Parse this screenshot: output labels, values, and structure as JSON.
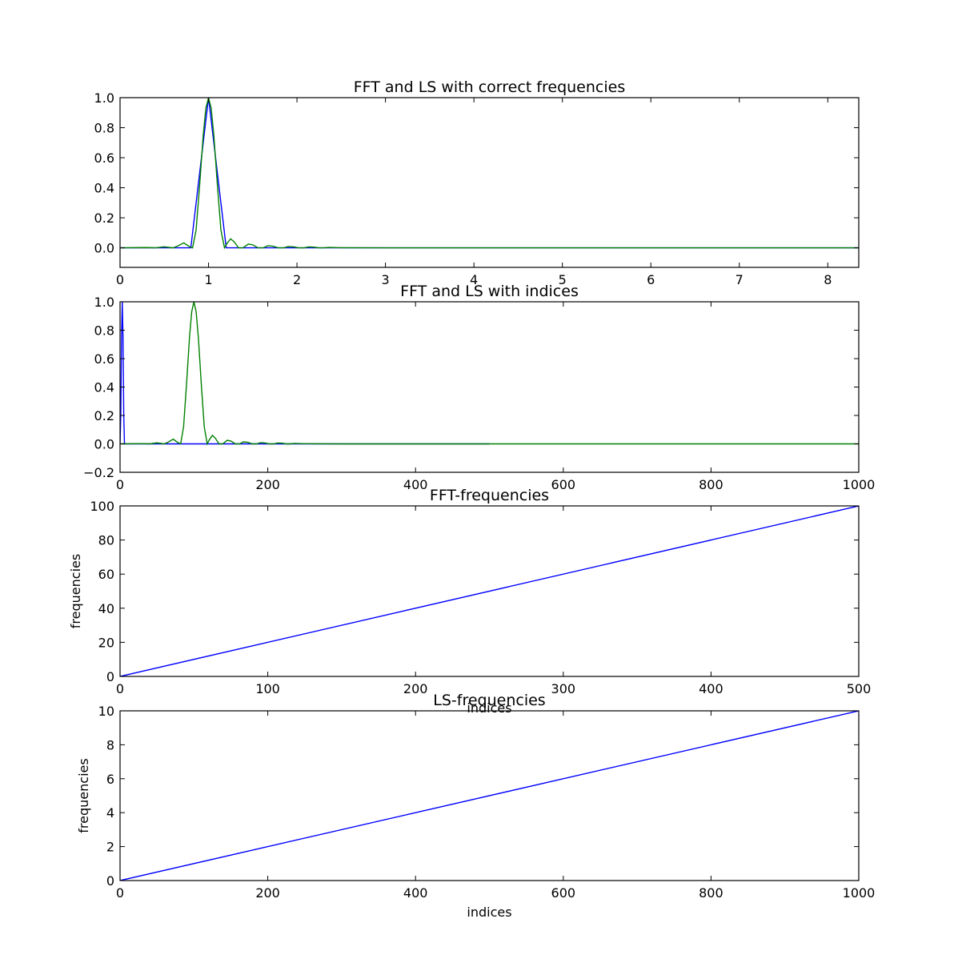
{
  "chart_data": [
    {
      "type": "line",
      "title": "FFT and LS with correct frequencies",
      "xlabel": "",
      "ylabel": "",
      "xlim": [
        0,
        8.35
      ],
      "ylim": [
        -0.13,
        1.0
      ],
      "xticks": [
        0,
        1,
        2,
        3,
        4,
        5,
        6,
        7,
        8
      ],
      "yticks": [
        0.0,
        0.2,
        0.4,
        0.6,
        0.8,
        1.0
      ],
      "xtick_labels": [
        "0",
        "1",
        "2",
        "3",
        "4",
        "5",
        "6",
        "7",
        "8"
      ],
      "ytick_labels": [
        "0.0",
        "0.2",
        "0.4",
        "0.6",
        "0.8",
        "1.0"
      ],
      "grid": false,
      "series": [
        {
          "color": "#0000ff",
          "x": [
            0,
            0.8,
            1.0,
            1.2,
            8.35
          ],
          "y": [
            0,
            0,
            1.0,
            0,
            0
          ]
        },
        {
          "color": "#008000",
          "x": [
            0,
            0.3,
            0.4,
            0.5,
            0.6,
            0.65,
            0.72,
            0.78,
            0.82,
            0.86,
            0.9,
            0.94,
            0.97,
            1.0,
            1.03,
            1.06,
            1.1,
            1.14,
            1.18,
            1.21,
            1.25,
            1.29,
            1.34,
            1.39,
            1.45,
            1.5,
            1.56,
            1.62,
            1.67,
            1.73,
            1.79,
            1.85,
            1.9,
            1.96,
            2.02,
            2.08,
            2.13,
            2.19,
            2.25,
            2.3,
            2.36,
            2.5,
            3.0,
            8.35
          ],
          "y": [
            0,
            0.002,
            0,
            0.007,
            0,
            0.012,
            0.033,
            0.01,
            0,
            0.12,
            0.42,
            0.75,
            0.93,
            1.0,
            0.93,
            0.75,
            0.42,
            0.12,
            0,
            0.03,
            0.06,
            0.04,
            0,
            0,
            0.025,
            0.02,
            0,
            0,
            0.014,
            0.011,
            0,
            0,
            0.009,
            0.007,
            0,
            0,
            0.006,
            0.005,
            0,
            0,
            0.003,
            0.001,
            0,
            0
          ]
        }
      ]
    },
    {
      "type": "line",
      "title": "FFT and LS with indices",
      "xlabel": "",
      "ylabel": "",
      "xlim": [
        0,
        1000
      ],
      "ylim": [
        -0.2,
        1.0
      ],
      "xticks": [
        0,
        200,
        400,
        600,
        800,
        1000
      ],
      "yticks": [
        -0.2,
        0.0,
        0.2,
        0.4,
        0.6,
        0.8,
        1.0
      ],
      "xtick_labels": [
        "0",
        "200",
        "400",
        "600",
        "800",
        "1000"
      ],
      "ytick_labels": [
        "−0.2",
        "0.0",
        "0.2",
        "0.4",
        "0.6",
        "0.8",
        "1.0"
      ],
      "grid": false,
      "series": [
        {
          "color": "#0000ff",
          "x": [
            0,
            1,
            2,
            3,
            4,
            5,
            6,
            500
          ],
          "y": [
            0,
            0.2,
            0.75,
            1.0,
            0.75,
            0.2,
            0,
            0
          ]
        },
        {
          "color": "#008000",
          "x": [
            0,
            30,
            40,
            50,
            60,
            65,
            72,
            78,
            82,
            86,
            90,
            94,
            97,
            100,
            103,
            106,
            110,
            114,
            118,
            121,
            125,
            129,
            134,
            139,
            145,
            150,
            156,
            162,
            167,
            173,
            179,
            185,
            190,
            196,
            202,
            208,
            213,
            219,
            225,
            230,
            236,
            250,
            300,
            1000
          ],
          "y": [
            0,
            0.002,
            0,
            0.007,
            0,
            0.012,
            0.033,
            0.01,
            0,
            0.12,
            0.42,
            0.75,
            0.93,
            1.0,
            0.93,
            0.75,
            0.42,
            0.12,
            0,
            0.03,
            0.06,
            0.04,
            0,
            0,
            0.025,
            0.02,
            0,
            0,
            0.014,
            0.011,
            0,
            0,
            0.009,
            0.007,
            0,
            0,
            0.006,
            0.005,
            0,
            0,
            0.003,
            0.001,
            0,
            0
          ]
        }
      ]
    },
    {
      "type": "line",
      "title": "FFT-frequencies",
      "xlabel": "indices",
      "ylabel": "frequencies",
      "xlim": [
        0,
        500
      ],
      "ylim": [
        0,
        100
      ],
      "xticks": [
        0,
        100,
        200,
        300,
        400,
        500
      ],
      "yticks": [
        0,
        20,
        40,
        60,
        80,
        100
      ],
      "xtick_labels": [
        "0",
        "100",
        "200",
        "300",
        "400",
        "500"
      ],
      "ytick_labels": [
        "0",
        "20",
        "40",
        "60",
        "80",
        "100"
      ],
      "grid": false,
      "series": [
        {
          "color": "#0000ff",
          "x": [
            0,
            500
          ],
          "y": [
            0,
            100
          ]
        }
      ]
    },
    {
      "type": "line",
      "title": "LS-frequencies",
      "xlabel": "indices",
      "ylabel": "frequencies",
      "xlim": [
        0,
        1000
      ],
      "ylim": [
        0,
        10
      ],
      "xticks": [
        0,
        200,
        400,
        600,
        800,
        1000
      ],
      "yticks": [
        0,
        2,
        4,
        6,
        8,
        10
      ],
      "xtick_labels": [
        "0",
        "200",
        "400",
        "600",
        "800",
        "1000"
      ],
      "ytick_labels": [
        "0",
        "2",
        "4",
        "6",
        "8",
        "10"
      ],
      "grid": false,
      "series": [
        {
          "color": "#0000ff",
          "x": [
            0,
            1000
          ],
          "y": [
            0,
            10
          ]
        }
      ]
    }
  ]
}
